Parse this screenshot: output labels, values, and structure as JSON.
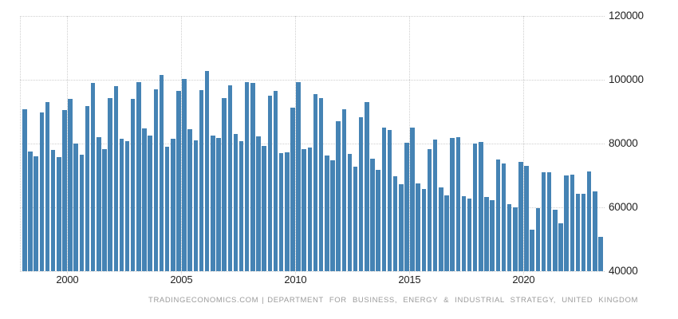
{
  "chart_data": {
    "type": "bar",
    "title": "",
    "x": [
      "1998-Q1",
      "1998-Q2",
      "1998-Q3",
      "1998-Q4",
      "1999-Q1",
      "1999-Q2",
      "1999-Q3",
      "1999-Q4",
      "2000-Q1",
      "2000-Q2",
      "2000-Q3",
      "2000-Q4",
      "2001-Q1",
      "2001-Q2",
      "2001-Q3",
      "2001-Q4",
      "2002-Q1",
      "2002-Q2",
      "2002-Q3",
      "2002-Q4",
      "2003-Q1",
      "2003-Q2",
      "2003-Q3",
      "2003-Q4",
      "2004-Q1",
      "2004-Q2",
      "2004-Q3",
      "2004-Q4",
      "2005-Q1",
      "2005-Q2",
      "2005-Q3",
      "2005-Q4",
      "2006-Q1",
      "2006-Q2",
      "2006-Q3",
      "2006-Q4",
      "2007-Q1",
      "2007-Q2",
      "2007-Q3",
      "2007-Q4",
      "2008-Q1",
      "2008-Q2",
      "2008-Q3",
      "2008-Q4",
      "2009-Q1",
      "2009-Q2",
      "2009-Q3",
      "2009-Q4",
      "2010-Q1",
      "2010-Q2",
      "2010-Q3",
      "2010-Q4",
      "2011-Q1",
      "2011-Q2",
      "2011-Q3",
      "2011-Q4",
      "2012-Q1",
      "2012-Q2",
      "2012-Q3",
      "2012-Q4",
      "2013-Q1",
      "2013-Q2",
      "2013-Q3",
      "2013-Q4",
      "2014-Q1",
      "2014-Q2",
      "2014-Q3",
      "2014-Q4",
      "2015-Q1",
      "2015-Q2",
      "2015-Q3",
      "2015-Q4",
      "2016-Q1",
      "2016-Q2",
      "2016-Q3",
      "2016-Q4",
      "2017-Q1",
      "2017-Q2",
      "2017-Q3",
      "2017-Q4",
      "2018-Q1",
      "2018-Q2",
      "2018-Q3",
      "2018-Q4",
      "2019-Q1",
      "2019-Q2",
      "2019-Q3",
      "2019-Q4",
      "2020-Q1",
      "2020-Q2",
      "2020-Q3",
      "2020-Q4",
      "2021-Q1",
      "2021-Q2",
      "2021-Q3",
      "2021-Q4",
      "2022-Q1",
      "2022-Q2",
      "2022-Q3",
      "2022-Q4",
      "2023-Q1",
      "2023-Q2"
    ],
    "values": [
      90800,
      77400,
      76000,
      89800,
      92900,
      78100,
      75700,
      90600,
      93900,
      80000,
      76600,
      91700,
      99000,
      82100,
      78300,
      94200,
      98000,
      81600,
      80800,
      94100,
      99300,
      84700,
      82600,
      97100,
      101500,
      79000,
      81500,
      96500,
      100300,
      84500,
      81000,
      96800,
      102800,
      82600,
      81700,
      94300,
      98300,
      82900,
      80800,
      99200,
      98900,
      82300,
      79200,
      95000,
      96500,
      76900,
      77200,
      91300,
      99300,
      78300,
      78700,
      95500,
      94300,
      76300,
      74800,
      87000,
      90700,
      76800,
      72800,
      88300,
      93000,
      75300,
      71700,
      84900,
      84200,
      69700,
      67200,
      80300,
      85100,
      67600,
      65800,
      78200,
      81300,
      66200,
      63800,
      81800,
      82000,
      63600,
      62800,
      80100,
      80500,
      63200,
      62200,
      74900,
      73800,
      61100,
      60100,
      74300,
      73000,
      53000,
      59700,
      70900,
      70900,
      59300,
      55100,
      70100,
      70300,
      64200,
      64200,
      71300,
      65000,
      50700
    ],
    "xlabel": "",
    "ylabel": "",
    "ylim": [
      40000,
      120000
    ],
    "y_tick_labels": [
      "40000",
      "60000",
      "80000",
      "100000",
      "120000"
    ],
    "x_tick_labels": [
      "2000",
      "2005",
      "2010",
      "2015",
      "2020"
    ],
    "x_tick_start_year": 1998,
    "grid": "dotted",
    "legend_position": "none",
    "bar_color": "#4583b4",
    "gridline_color": "#cfcfcf",
    "tick_label_color": "#222222",
    "source_color": "#9b9b9b",
    "source_left": "TRADINGECONOMICS.COM",
    "source_separator": "|",
    "source_right": "DEPARTMENT FOR BUSINESS, ENERGY & INDUSTRIAL STRATEGY, UNITED KINGDOM"
  }
}
